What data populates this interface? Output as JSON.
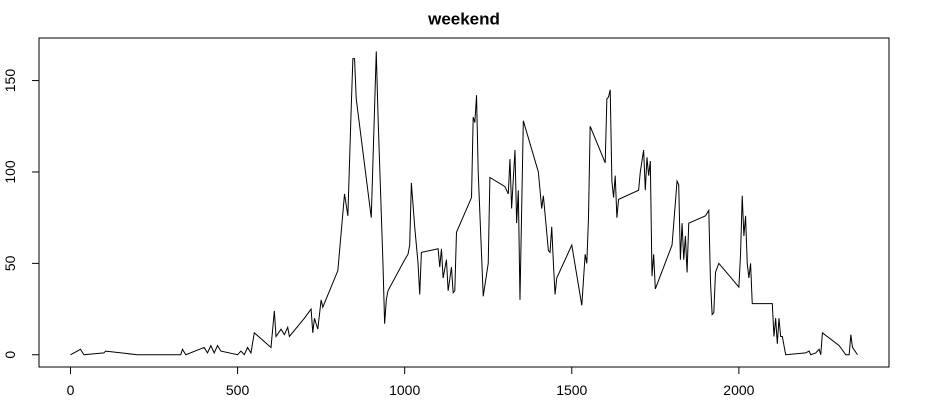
{
  "chart_data": {
    "type": "line",
    "title": "weekend",
    "x": [
      0,
      30,
      40,
      100,
      105,
      200,
      330,
      335,
      345,
      400,
      410,
      420,
      430,
      440,
      450,
      500,
      510,
      520,
      530,
      540,
      550,
      600,
      610,
      615,
      630,
      640,
      650,
      655,
      700,
      720,
      725,
      730,
      740,
      750,
      755,
      800,
      820,
      830,
      840,
      845,
      850,
      855,
      900,
      915,
      920,
      935,
      940,
      945,
      950,
      1000,
      1010,
      1015,
      1020,
      1030,
      1040,
      1045,
      1050,
      1100,
      1105,
      1110,
      1115,
      1125,
      1130,
      1140,
      1145,
      1150,
      1155,
      1200,
      1205,
      1210,
      1215,
      1220,
      1235,
      1250,
      1255,
      1300,
      1310,
      1315,
      1320,
      1330,
      1335,
      1340,
      1345,
      1355,
      1400,
      1410,
      1415,
      1430,
      1435,
      1440,
      1445,
      1450,
      1455,
      1500,
      1530,
      1540,
      1545,
      1550,
      1555,
      1600,
      1605,
      1610,
      1615,
      1620,
      1625,
      1630,
      1635,
      1640,
      1700,
      1705,
      1715,
      1720,
      1725,
      1730,
      1735,
      1740,
      1745,
      1750,
      1800,
      1815,
      1820,
      1825,
      1830,
      1835,
      1840,
      1845,
      1850,
      1900,
      1910,
      1915,
      1920,
      1925,
      1930,
      1940,
      2000,
      2005,
      2010,
      2015,
      2020,
      2025,
      2030,
      2035,
      2040,
      2100,
      2105,
      2110,
      2115,
      2120,
      2125,
      2130,
      2140,
      2200,
      2210,
      2215,
      2230,
      2240,
      2245,
      2250,
      2300,
      2320,
      2330,
      2335,
      2340,
      2355
    ],
    "series": [
      {
        "color": "#000000",
        "values": [
          0,
          3,
          0,
          1,
          2,
          0,
          0,
          3,
          0,
          4,
          1,
          5,
          1,
          5,
          2,
          0,
          2,
          0,
          4,
          1,
          12,
          4,
          24,
          10,
          14,
          11,
          15,
          10,
          20,
          25,
          12,
          20,
          14,
          30,
          26,
          46,
          88,
          76,
          135,
          162,
          162,
          140,
          75,
          166,
          132,
          50,
          17,
          30,
          35,
          52,
          55,
          60,
          94,
          70,
          50,
          33,
          56,
          58,
          48,
          58,
          42,
          52,
          35,
          48,
          34,
          35,
          67,
          86,
          130,
          127,
          142,
          100,
          32,
          50,
          97,
          92,
          88,
          107,
          80,
          112,
          72,
          90,
          30,
          128,
          100,
          80,
          87,
          57,
          56,
          70,
          50,
          33,
          42,
          60,
          27,
          55,
          50,
          75,
          125,
          105,
          140,
          141,
          145,
          95,
          86,
          98,
          75,
          85,
          90,
          100,
          112,
          90,
          108,
          98,
          106,
          43,
          55,
          36,
          60,
          95,
          93,
          52,
          72,
          52,
          65,
          45,
          72,
          76,
          79,
          40,
          22,
          23,
          45,
          50,
          37,
          55,
          87,
          65,
          76,
          50,
          42,
          50,
          28,
          28,
          10,
          20,
          6,
          20,
          10,
          10,
          0,
          1,
          2,
          0,
          1,
          3,
          0,
          12,
          5,
          0,
          0,
          11,
          4,
          0
        ]
      }
    ],
    "xlim": [
      -94.2,
      2449.2
    ],
    "xticks": [
      0,
      500,
      1000,
      1500,
      2000
    ],
    "ylim": [
      -6.7,
      173.3
    ],
    "yticks": [
      0,
      50,
      100,
      150
    ]
  }
}
